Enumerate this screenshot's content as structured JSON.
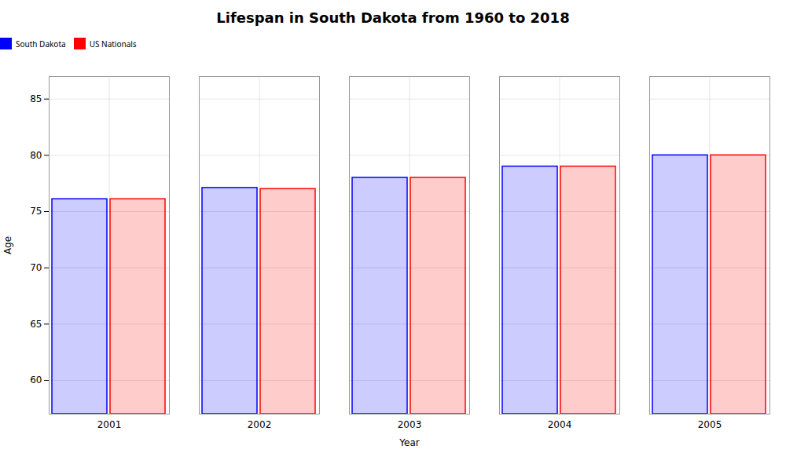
{
  "chart_data": {
    "type": "bar",
    "title": "Lifespan in South Dakota from 1960 to 2018",
    "xlabel": "Year",
    "ylabel": "Age",
    "categories": [
      "2001",
      "2002",
      "2003",
      "2004",
      "2005"
    ],
    "series": [
      {
        "name": "South Dakota",
        "color": "#0000ff",
        "values": [
          76.1,
          77.1,
          78.0,
          79.0,
          80.0
        ]
      },
      {
        "name": "US Nationals",
        "color": "#ff0000",
        "values": [
          76.1,
          77.0,
          78.0,
          79.0,
          80.0
        ]
      }
    ],
    "ylim": [
      57,
      87
    ],
    "yticks": [
      60,
      65,
      70,
      75,
      80,
      85
    ],
    "grid": true,
    "legend": "top"
  }
}
